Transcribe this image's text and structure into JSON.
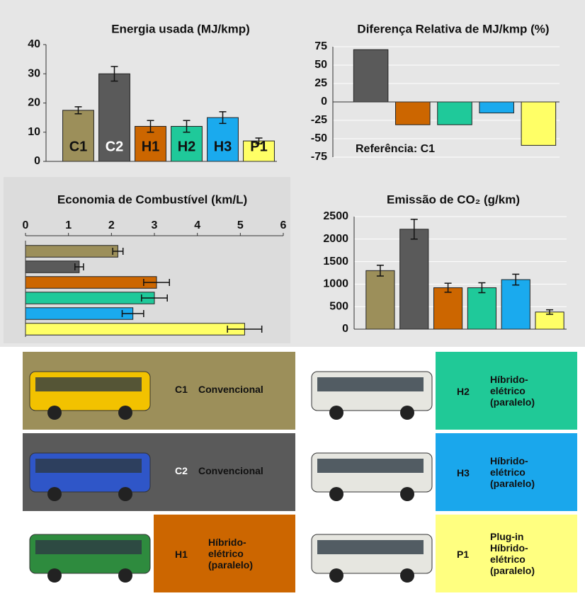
{
  "chart_data": [
    {
      "type": "bar",
      "title": "Energia usada (MJ/kmp)",
      "categories": [
        "C1",
        "C2",
        "H1",
        "H2",
        "H3",
        "P1"
      ],
      "values": [
        17.5,
        30,
        12,
        12,
        15,
        7
      ],
      "errors": [
        1.2,
        2.5,
        2,
        2,
        2,
        1
      ],
      "colors": [
        "#9c8f5a",
        "#5a5a5a",
        "#cc6600",
        "#1fc99a",
        "#1aaaee",
        "#ffff66"
      ],
      "ylim": [
        0,
        40
      ],
      "yticks": [
        0,
        10,
        20,
        30,
        40
      ],
      "grid": false
    },
    {
      "type": "bar",
      "title": "Diferença Relativa de MJ/kmp (%)",
      "values": [
        71,
        -31,
        -31,
        -15,
        -59
      ],
      "colors": [
        "#5a5a5a",
        "#cc6600",
        "#1fc99a",
        "#1aaaee",
        "#ffff66"
      ],
      "ylim": [
        -75,
        75
      ],
      "yticks": [
        -75,
        -50,
        -25,
        0,
        25,
        50,
        75
      ],
      "grid": true,
      "annotation": "Referência: C1"
    },
    {
      "type": "barh",
      "title": "Economia de Combustível (km/L)",
      "values": [
        2.15,
        1.25,
        3.05,
        3.0,
        2.5,
        5.1
      ],
      "errors": [
        0.12,
        0.1,
        0.3,
        0.3,
        0.25,
        0.4
      ],
      "colors": [
        "#9c8f5a",
        "#5a5a5a",
        "#cc6600",
        "#1fc99a",
        "#1aaaee",
        "#ffff66"
      ],
      "xlim": [
        0,
        6
      ],
      "xticks": [
        0,
        1,
        2,
        3,
        4,
        5,
        6
      ],
      "grid": false
    },
    {
      "type": "bar",
      "title": "Emissão de CO₂ (g/km)",
      "values": [
        1300,
        2220,
        920,
        920,
        1100,
        380
      ],
      "errors": [
        120,
        220,
        100,
        110,
        120,
        50
      ],
      "colors": [
        "#9c8f5a",
        "#5a5a5a",
        "#cc6600",
        "#1fc99a",
        "#1aaaee",
        "#ffff66"
      ],
      "ylim": [
        0,
        2500
      ],
      "yticks": [
        0,
        500,
        1000,
        1500,
        2000,
        2500
      ],
      "grid": true
    }
  ],
  "legend": {
    "tiles": [
      {
        "code": "C1",
        "lines": [
          "Convencional"
        ],
        "color": "#9c8f5a"
      },
      {
        "code": "H2",
        "lines": [
          "Híbrido-",
          "elétrico",
          "(paralelo)"
        ],
        "color": "#20c997"
      },
      {
        "code": "C2",
        "lines": [
          "Convencional"
        ],
        "color": "#5a5a5a"
      },
      {
        "code": "H3",
        "lines": [
          "Híbrido-",
          "elétrico",
          "(paralelo)"
        ],
        "color": "#1aa7ec"
      },
      {
        "code": "H1",
        "lines": [
          "Híbrido-",
          "elétrico",
          "(paralelo)"
        ],
        "color": "#cc6600"
      },
      {
        "code": "P1",
        "lines": [
          "Plug-in",
          "Híbrido-",
          "elétrico",
          "(paralelo)"
        ],
        "color": "#ffff80"
      }
    ]
  }
}
